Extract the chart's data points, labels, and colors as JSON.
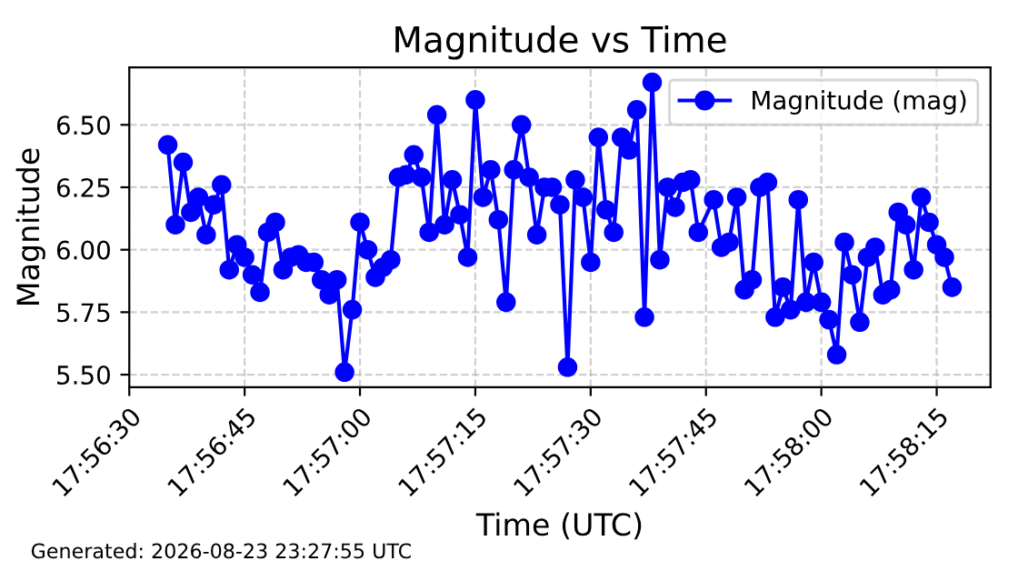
{
  "chart_data": {
    "type": "line",
    "title": "Magnitude vs Time",
    "xlabel": "Time (UTC)",
    "ylabel": "Magnitude",
    "annotations": [
      "Generated: 2026-08-23 23:27:55 UTC"
    ],
    "x": [
      "2026-08-23T17:56:35",
      "2026-08-23T17:56:36",
      "2026-08-23T17:56:37",
      "2026-08-23T17:56:38",
      "2026-08-23T17:56:39",
      "2026-08-23T17:56:40",
      "2026-08-23T17:56:41",
      "2026-08-23T17:56:42",
      "2026-08-23T17:56:43",
      "2026-08-23T17:56:44",
      "2026-08-23T17:56:45",
      "2026-08-23T17:56:46",
      "2026-08-23T17:56:47",
      "2026-08-23T17:56:48",
      "2026-08-23T17:56:49",
      "2026-08-23T17:56:50",
      "2026-08-23T17:56:51",
      "2026-08-23T17:56:52",
      "2026-08-23T17:56:53",
      "2026-08-23T17:56:54",
      "2026-08-23T17:56:55",
      "2026-08-23T17:56:56",
      "2026-08-23T17:56:57",
      "2026-08-23T17:56:58",
      "2026-08-23T17:56:59",
      "2026-08-23T17:57:00",
      "2026-08-23T17:57:01",
      "2026-08-23T17:57:02",
      "2026-08-23T17:57:03",
      "2026-08-23T17:57:04",
      "2026-08-23T17:57:05",
      "2026-08-23T17:57:06",
      "2026-08-23T17:57:07",
      "2026-08-23T17:57:08",
      "2026-08-23T17:57:09",
      "2026-08-23T17:57:10",
      "2026-08-23T17:57:11",
      "2026-08-23T17:57:12",
      "2026-08-23T17:57:13",
      "2026-08-23T17:57:14",
      "2026-08-23T17:57:15",
      "2026-08-23T17:57:16",
      "2026-08-23T17:57:17",
      "2026-08-23T17:57:18",
      "2026-08-23T17:57:19",
      "2026-08-23T17:57:20",
      "2026-08-23T17:57:21",
      "2026-08-23T17:57:22",
      "2026-08-23T17:57:23",
      "2026-08-23T17:57:24",
      "2026-08-23T17:57:25",
      "2026-08-23T17:57:26",
      "2026-08-23T17:57:27",
      "2026-08-23T17:57:28",
      "2026-08-23T17:57:29",
      "2026-08-23T17:57:30",
      "2026-08-23T17:57:31",
      "2026-08-23T17:57:32",
      "2026-08-23T17:57:33",
      "2026-08-23T17:57:34",
      "2026-08-23T17:57:35",
      "2026-08-23T17:57:36",
      "2026-08-23T17:57:37",
      "2026-08-23T17:57:38",
      "2026-08-23T17:57:39",
      "2026-08-23T17:57:40",
      "2026-08-23T17:57:41",
      "2026-08-23T17:57:42",
      "2026-08-23T17:57:43",
      "2026-08-23T17:57:44",
      "2026-08-23T17:57:46",
      "2026-08-23T17:57:47",
      "2026-08-23T17:57:48",
      "2026-08-23T17:57:49",
      "2026-08-23T17:57:50",
      "2026-08-23T17:57:51",
      "2026-08-23T17:57:52",
      "2026-08-23T17:57:53",
      "2026-08-23T17:57:54",
      "2026-08-23T17:57:55",
      "2026-08-23T17:57:56",
      "2026-08-23T17:57:57",
      "2026-08-23T17:57:58",
      "2026-08-23T17:57:59",
      "2026-08-23T17:58:00",
      "2026-08-23T17:58:01",
      "2026-08-23T17:58:02",
      "2026-08-23T17:58:03",
      "2026-08-23T17:58:04",
      "2026-08-23T17:58:05",
      "2026-08-23T17:58:06",
      "2026-08-23T17:58:07",
      "2026-08-23T17:58:08",
      "2026-08-23T17:58:09",
      "2026-08-23T17:58:10",
      "2026-08-23T17:58:11",
      "2026-08-23T17:58:12",
      "2026-08-23T17:58:13",
      "2026-08-23T17:58:14",
      "2026-08-23T17:58:15",
      "2026-08-23T17:58:16",
      "2026-08-23T17:58:17"
    ],
    "series": [
      {
        "name": "Magnitude (mag)",
        "color": "#0000ff",
        "values": [
          6.42,
          6.1,
          6.35,
          6.15,
          6.21,
          6.06,
          6.18,
          6.26,
          5.92,
          6.02,
          5.97,
          5.9,
          5.83,
          6.07,
          6.11,
          5.92,
          5.97,
          5.98,
          5.95,
          5.95,
          5.88,
          5.82,
          5.88,
          5.51,
          5.76,
          6.11,
          6.0,
          5.89,
          5.93,
          5.96,
          6.29,
          6.3,
          6.38,
          6.29,
          6.07,
          6.54,
          6.1,
          6.28,
          6.14,
          5.97,
          6.6,
          6.21,
          6.32,
          6.12,
          5.79,
          6.32,
          6.5,
          6.29,
          6.06,
          6.25,
          6.25,
          6.18,
          5.53,
          6.28,
          6.21,
          5.95,
          6.45,
          6.16,
          6.07,
          6.45,
          6.4,
          6.56,
          5.73,
          6.67,
          5.96,
          6.25,
          6.17,
          6.27,
          6.28,
          6.07,
          6.2,
          6.01,
          6.03,
          6.21,
          5.84,
          5.88,
          6.25,
          6.27,
          5.73,
          5.85,
          5.76,
          6.2,
          5.79,
          5.95,
          5.79,
          5.72,
          5.58,
          6.03,
          5.9,
          5.71,
          5.97,
          6.01,
          5.82,
          5.84,
          6.15,
          6.1,
          5.92,
          6.21,
          6.11,
          6.02,
          5.97,
          5.85
        ]
      }
    ],
    "xlim": [
      "2026-08-23T17:56:30",
      "2026-08-23T17:58:22"
    ],
    "xticks": [
      {
        "value": "2026-08-23T17:56:30",
        "label": "17:56:30"
      },
      {
        "value": "2026-08-23T17:56:45",
        "label": "17:56:45"
      },
      {
        "value": "2026-08-23T17:57:00",
        "label": "17:57:00"
      },
      {
        "value": "2026-08-23T17:57:15",
        "label": "17:57:15"
      },
      {
        "value": "2026-08-23T17:57:30",
        "label": "17:57:30"
      },
      {
        "value": "2026-08-23T17:57:45",
        "label": "17:57:45"
      },
      {
        "value": "2026-08-23T17:58:00",
        "label": "17:58:00"
      },
      {
        "value": "2026-08-23T17:58:15",
        "label": "17:58:15"
      }
    ],
    "ylim": [
      5.45,
      6.73
    ],
    "yticks": [
      {
        "value": 5.5,
        "label": "5.50"
      },
      {
        "value": 5.75,
        "label": "5.75"
      },
      {
        "value": 6.0,
        "label": "6.00"
      },
      {
        "value": 6.25,
        "label": "6.25"
      },
      {
        "value": 6.5,
        "label": "6.50"
      }
    ],
    "grid": true,
    "legend": "top right",
    "marker": "circle",
    "line_style": "solid"
  }
}
